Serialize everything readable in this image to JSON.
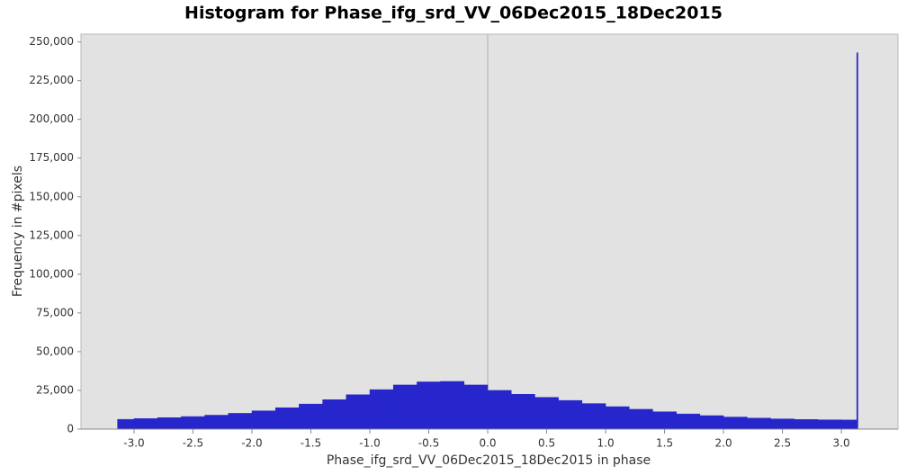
{
  "chart_data": {
    "type": "histogram",
    "title": "Histogram for Phase_ifg_srd_VV_06Dec2015_18Dec2015",
    "x_label": "Phase_ifg_srd_VV_06Dec2015_18Dec2015 in phase",
    "y_label": "Frequency in #pixels",
    "color": "#2626cc",
    "bins": [
      -3.14,
      -3.0,
      -2.8,
      -2.6,
      -2.4,
      -2.2,
      -2.0,
      -1.8,
      -1.6,
      -1.4,
      -1.2,
      -1.0,
      -0.8,
      -0.6,
      -0.4,
      -0.2,
      0,
      0.2,
      0.4,
      0.6,
      0.8,
      1.0,
      1.2,
      1.4,
      1.6,
      1.8,
      2.0,
      2.2,
      2.4,
      2.6,
      2.8,
      3.0,
      3.13,
      3.14
    ],
    "values": [
      6300,
      6800,
      7400,
      8100,
      9000,
      10200,
      11800,
      13800,
      16200,
      19000,
      22200,
      25500,
      28500,
      30500,
      30800,
      28500,
      25000,
      22500,
      20500,
      18500,
      16500,
      14500,
      12800,
      11200,
      9800,
      8700,
      7800,
      7100,
      6600,
      6200,
      6000,
      5900,
      243000
    ],
    "xlim": [
      -3.45,
      3.48
    ],
    "ylim": [
      0,
      255000
    ],
    "xticks": [
      {
        "value": -3,
        "label": "-3.0"
      },
      -2.5,
      {
        "value": -2,
        "label": "-2.0"
      },
      -1.5,
      {
        "value": -1,
        "label": "-1.0"
      },
      -0.5,
      {
        "value": 0,
        "label": "0.0"
      },
      0.5,
      {
        "value": 1,
        "label": "1.0"
      },
      1.5,
      {
        "value": 2,
        "label": "2.0"
      },
      2.5,
      {
        "value": 3,
        "label": "3.0"
      }
    ],
    "yticks": [
      0,
      {
        "value": 25000,
        "label": "25,000"
      },
      {
        "value": 50000,
        "label": "50,000"
      },
      {
        "value": 75000,
        "label": "75,000"
      },
      {
        "value": 100000,
        "label": "100,000"
      },
      {
        "value": 125000,
        "label": "125,000"
      },
      {
        "value": 150000,
        "label": "150,000"
      },
      {
        "value": 175000,
        "label": "175,000"
      },
      {
        "value": 200000,
        "label": "200,000"
      },
      {
        "value": 225000,
        "label": "225,000"
      },
      {
        "value": 250000,
        "label": "250,000"
      }
    ]
  }
}
